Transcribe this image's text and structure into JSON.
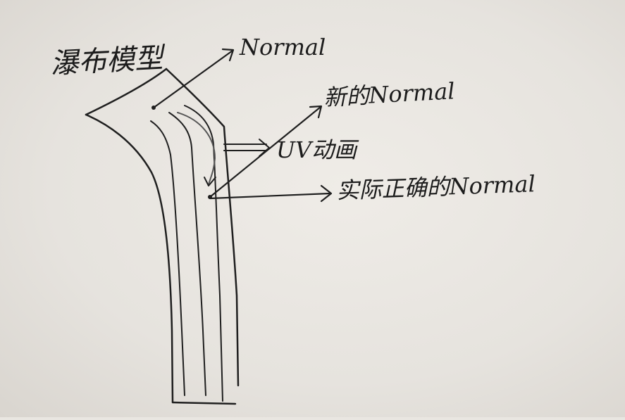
{
  "diagram": {
    "title": "瀑布模型",
    "labels": {
      "normal": "Normal",
      "new_normal": "新的Normal",
      "uv_animation": "UV动画",
      "correct_normal": "实际正确的Normal"
    }
  }
}
